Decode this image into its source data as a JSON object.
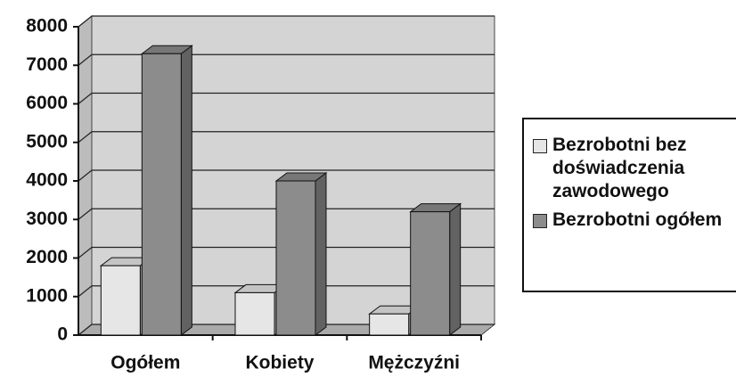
{
  "chart_data": {
    "type": "bar3d",
    "categories": [
      "Ogółem",
      "Kobiety",
      "Mężczyźni"
    ],
    "series": [
      {
        "name": "Bezrobotni bez doświadczenia zawodowego",
        "color": "#e6e6e6",
        "values": [
          1800,
          1100,
          550
        ]
      },
      {
        "name": "Bezrobotni ogółem",
        "color": "#8c8c8c",
        "values": [
          7300,
          4000,
          3200
        ]
      }
    ],
    "ylim": [
      0,
      8000
    ],
    "yticks": [
      0,
      1000,
      2000,
      3000,
      4000,
      5000,
      6000,
      7000,
      8000
    ],
    "grid": true,
    "legend": "right"
  }
}
